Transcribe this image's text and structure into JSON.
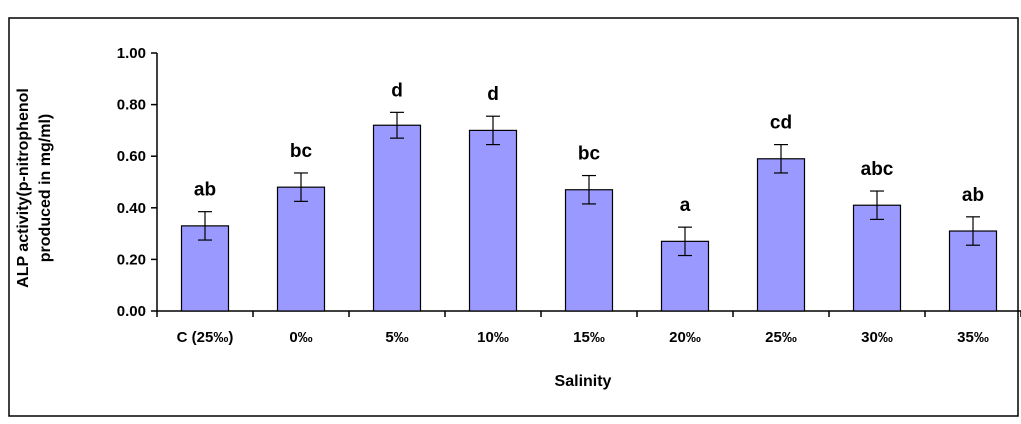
{
  "chart_data": {
    "type": "bar",
    "title": "",
    "xlabel": "Salinity",
    "ylabel_lines": [
      "ALP activity(p-nitrophenol",
      "produced in mg/ml)"
    ],
    "categories": [
      "C (25‰)",
      "0‰",
      "5‰",
      "10‰",
      "15‰",
      "20‰",
      "25‰",
      "30‰",
      "35‰"
    ],
    "values": [
      0.33,
      0.48,
      0.72,
      0.7,
      0.47,
      0.27,
      0.59,
      0.41,
      0.31
    ],
    "errors": [
      0.055,
      0.055,
      0.05,
      0.055,
      0.055,
      0.055,
      0.055,
      0.055,
      0.055
    ],
    "significance_labels": [
      "ab",
      "bc",
      "d",
      "d",
      "bc",
      "a",
      "cd",
      "abc",
      "ab"
    ],
    "ylim": [
      0,
      1.0
    ],
    "yticks": [
      "0.00",
      "0.20",
      "0.40",
      "0.60",
      "0.80",
      "1.00"
    ],
    "ytick_values": [
      0,
      0.2,
      0.4,
      0.6,
      0.8,
      1.0
    ],
    "grid": false,
    "legend": "none",
    "colors": {
      "bar_fill": "#9999ff",
      "bar_stroke": "#000000",
      "axis": "#000000",
      "frame": "#000000"
    }
  }
}
